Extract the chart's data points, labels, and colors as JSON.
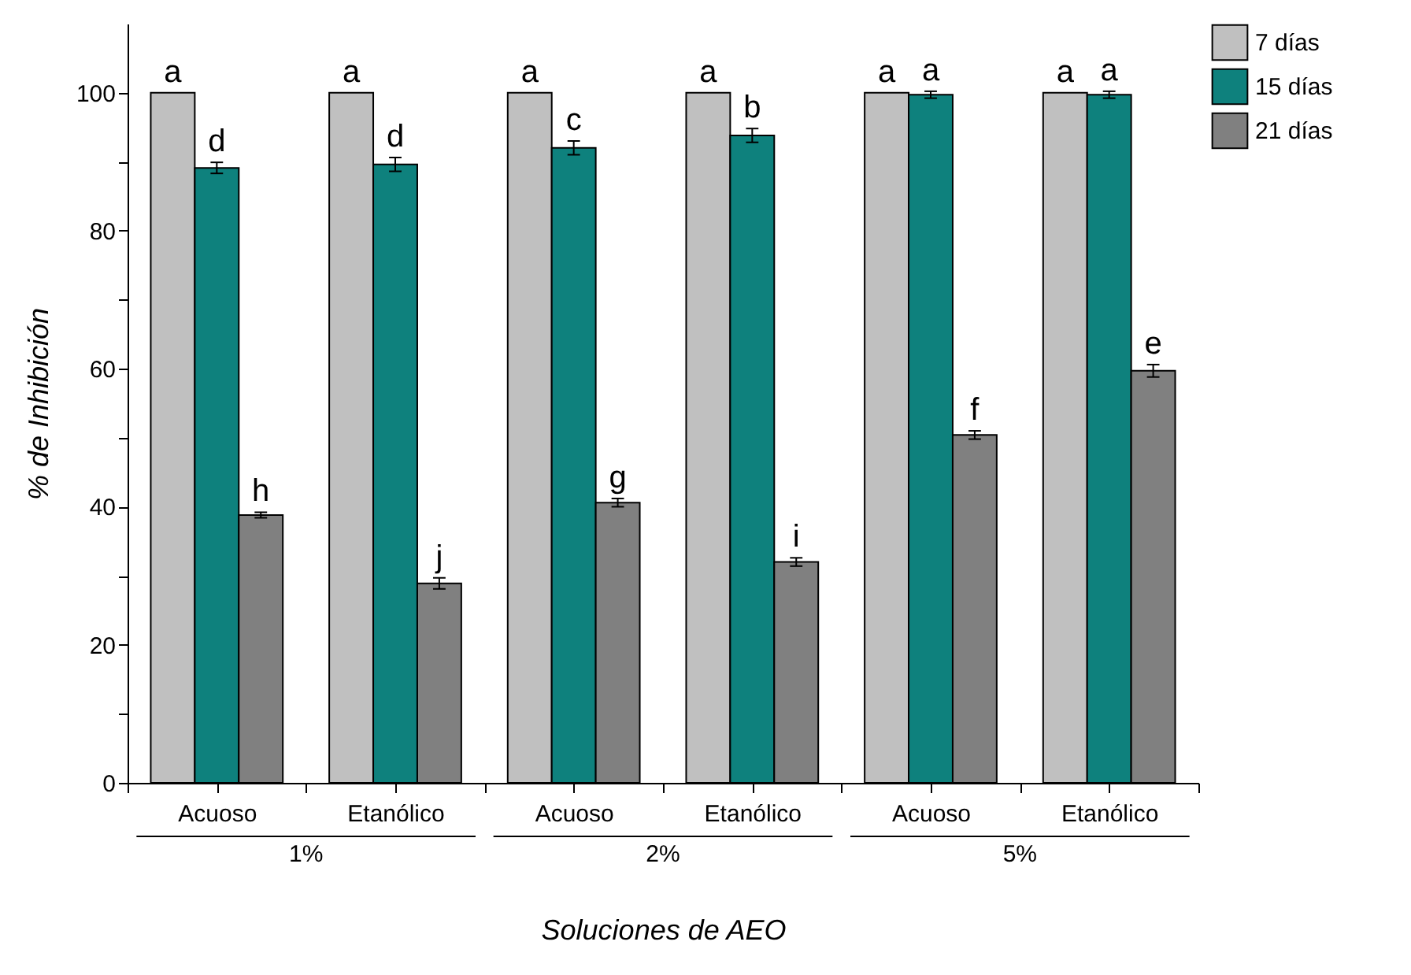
{
  "chart_data": {
    "type": "bar",
    "xlabel": "Soluciones de AEO",
    "ylabel": "% de Inhibición",
    "categories": [
      "Acuoso",
      "Etanólico",
      "Acuoso",
      "Etanólico",
      "Acuoso",
      "Etanólico"
    ],
    "series": [
      {
        "name": "7 días",
        "color": "#c0c0c0",
        "values": [
          100,
          100,
          100,
          100,
          100,
          100
        ],
        "value_labels": [
          "a",
          "a",
          "a",
          "a",
          "a",
          "a"
        ]
      },
      {
        "name": "15 días",
        "color": "#0e817d",
        "values": [
          89.1,
          89.6,
          92.0,
          93.8,
          99.7,
          99.7
        ],
        "errors": [
          0.8,
          1.0,
          1.0,
          1.0,
          0.5,
          0.5
        ],
        "value_labels": [
          "d",
          "d",
          "c",
          "b",
          "a",
          "a"
        ]
      },
      {
        "name": "21 días",
        "color": "#808080",
        "values": [
          38.8,
          28.9,
          40.6,
          32.0,
          50.4,
          59.7
        ],
        "errors": [
          0.4,
          0.8,
          0.6,
          0.6,
          0.6,
          0.9
        ],
        "value_labels": [
          "h",
          "j",
          "g",
          "i",
          "f",
          "e"
        ]
      }
    ],
    "annotations": [
      "1%",
      "2%",
      "5%"
    ],
    "ylim": [
      0,
      110
    ],
    "yticks": [
      0,
      {
        "value": 10,
        "label": null
      },
      20,
      {
        "value": 30,
        "label": null
      },
      40,
      {
        "value": 50,
        "label": null
      },
      60,
      {
        "value": 70,
        "label": null
      },
      80,
      {
        "value": 90,
        "label": null
      },
      100
    ],
    "grid": false,
    "legend": "top right"
  }
}
